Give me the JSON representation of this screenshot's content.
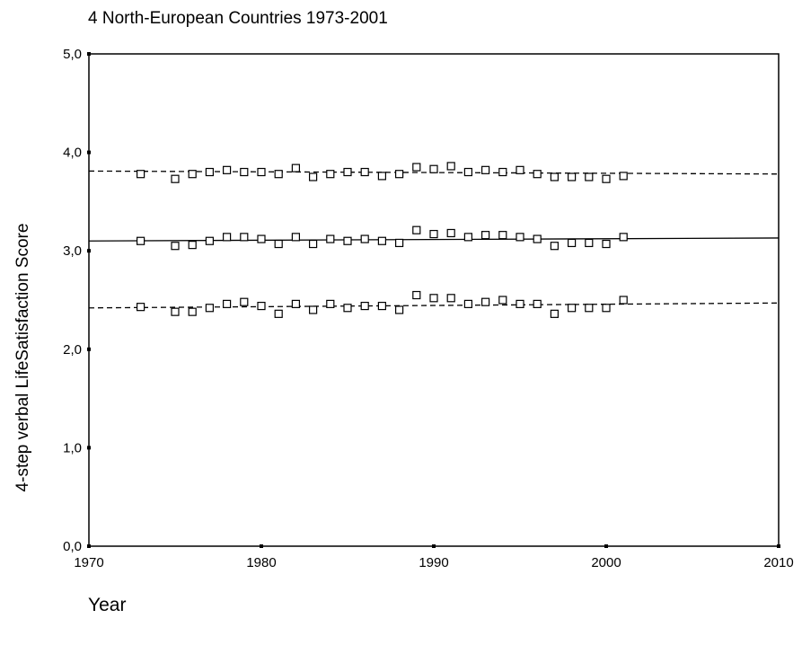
{
  "chart_data": {
    "type": "scatter",
    "title": "4 North-European Countries 1973-2001",
    "xlabel": "Year",
    "ylabel": "4-step verbal LifeSatisfaction Score",
    "xlim": [
      1970,
      2010
    ],
    "ylim": [
      0,
      5
    ],
    "x_ticks": [
      "1970",
      "1980",
      "1990",
      "2000",
      "2010"
    ],
    "y_ticks": [
      "0,0",
      "1,0",
      "2,0",
      "3,0",
      "4,0",
      "5,0"
    ],
    "grid": false,
    "marker": "open-square",
    "x": [
      1973,
      1975,
      1976,
      1977,
      1978,
      1979,
      1980,
      1981,
      1982,
      1983,
      1984,
      1985,
      1986,
      1987,
      1988,
      1989,
      1990,
      1991,
      1992,
      1993,
      1994,
      1995,
      1996,
      1997,
      1998,
      1999,
      2000,
      2001
    ],
    "series": [
      {
        "values": [
          3.78,
          3.73,
          3.78,
          3.8,
          3.82,
          3.8,
          3.8,
          3.78,
          3.84,
          3.75,
          3.78,
          3.8,
          3.8,
          3.76,
          3.78,
          3.85,
          3.83,
          3.86,
          3.8,
          3.82,
          3.8,
          3.82,
          3.78,
          3.75,
          3.75,
          3.75,
          3.73,
          3.76
        ]
      },
      {
        "values": [
          3.1,
          3.05,
          3.06,
          3.1,
          3.14,
          3.14,
          3.12,
          3.07,
          3.14,
          3.07,
          3.12,
          3.1,
          3.12,
          3.1,
          3.08,
          3.21,
          3.17,
          3.18,
          3.14,
          3.16,
          3.16,
          3.14,
          3.12,
          3.05,
          3.08,
          3.08,
          3.07,
          3.14
        ]
      },
      {
        "values": [
          2.43,
          2.38,
          2.38,
          2.42,
          2.46,
          2.48,
          2.44,
          2.36,
          2.46,
          2.4,
          2.46,
          2.42,
          2.44,
          2.44,
          2.4,
          2.55,
          2.52,
          2.52,
          2.46,
          2.48,
          2.5,
          2.46,
          2.46,
          2.36,
          2.42,
          2.42,
          2.42,
          2.5
        ]
      }
    ],
    "trend_lines": [
      {
        "style": "dashed",
        "start": [
          1970,
          3.81
        ],
        "end": [
          2010,
          3.78
        ]
      },
      {
        "style": "solid",
        "start": [
          1970,
          3.1
        ],
        "end": [
          2010,
          3.13
        ]
      },
      {
        "style": "dashed",
        "start": [
          1970,
          2.42
        ],
        "end": [
          2010,
          2.47
        ]
      }
    ]
  }
}
